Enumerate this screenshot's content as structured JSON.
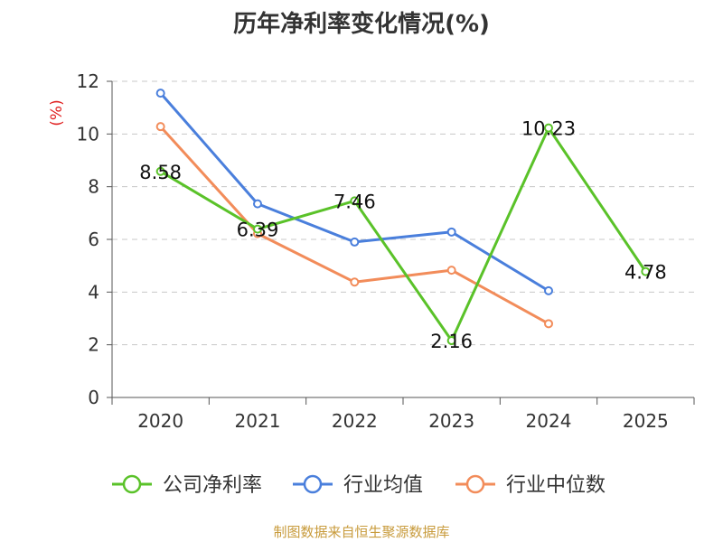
{
  "title": "历年净利率变化情况(%)",
  "source_text": "制图数据来自恒生聚源数据库",
  "chart_data": {
    "type": "line",
    "title": "历年净利率变化情况(%)",
    "ylabel": "(%)",
    "categories": [
      "2020",
      "2021",
      "2022",
      "2023",
      "2024",
      "2025"
    ],
    "ylim": [
      0,
      12
    ],
    "yticks": [
      0,
      2,
      4,
      6,
      8,
      10,
      12
    ],
    "grid": true,
    "legend_position": "bottom",
    "series": [
      {
        "name": "公司净利率",
        "color": "#5ac229",
        "values": [
          8.58,
          6.39,
          7.46,
          2.16,
          10.23,
          4.78
        ],
        "labels": [
          "8.58",
          "6.39",
          "7.46",
          "2.16",
          "10.23",
          "4.78"
        ]
      },
      {
        "name": "行业均值",
        "color": "#4a7fdc",
        "values": [
          11.55,
          7.35,
          5.9,
          6.28,
          4.05,
          null
        ]
      },
      {
        "name": "行业中位数",
        "color": "#f28c5a",
        "values": [
          10.28,
          6.22,
          4.38,
          4.83,
          2.8,
          null
        ]
      }
    ]
  }
}
